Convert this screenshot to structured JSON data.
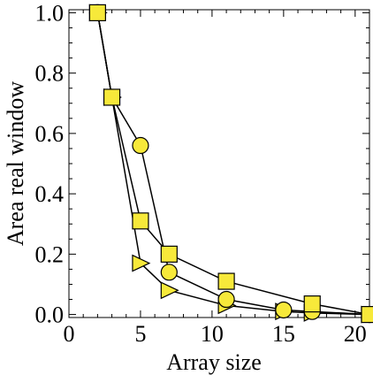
{
  "chart_data": {
    "type": "line",
    "xlabel": "Array size",
    "ylabel": "Area real window",
    "xlim": [
      0,
      21
    ],
    "ylim": [
      -0.01,
      1.01
    ],
    "x_ticks": [
      0,
      5,
      10,
      15,
      20
    ],
    "y_ticks": [
      0.0,
      0.2,
      0.4,
      0.6,
      0.8,
      1.0
    ],
    "x_tick_labels": [
      "0",
      "5",
      "10",
      "15",
      "20"
    ],
    "y_tick_labels": [
      "0.0",
      "0.2",
      "0.4",
      "0.6",
      "0.8",
      "1.0"
    ],
    "grid": false,
    "marker_fill": "#f7e93a",
    "marker_stroke": "#000000",
    "series": [
      {
        "marker": "square",
        "x": [
          2,
          3,
          5,
          7,
          11,
          17,
          21
        ],
        "y": [
          1.0,
          0.72,
          0.31,
          0.2,
          0.11,
          0.035,
          0.0
        ]
      },
      {
        "marker": "circle",
        "x": [
          2,
          3,
          5,
          7,
          11,
          15,
          17,
          21
        ],
        "y": [
          1.0,
          0.72,
          0.56,
          0.14,
          0.05,
          0.015,
          0.01,
          0.0
        ]
      },
      {
        "marker": "triangle-right",
        "x": [
          2,
          3,
          5,
          7,
          11,
          15,
          17,
          21
        ],
        "y": [
          1.0,
          0.72,
          0.17,
          0.08,
          0.03,
          0.01,
          0.005,
          0.0
        ]
      }
    ]
  }
}
